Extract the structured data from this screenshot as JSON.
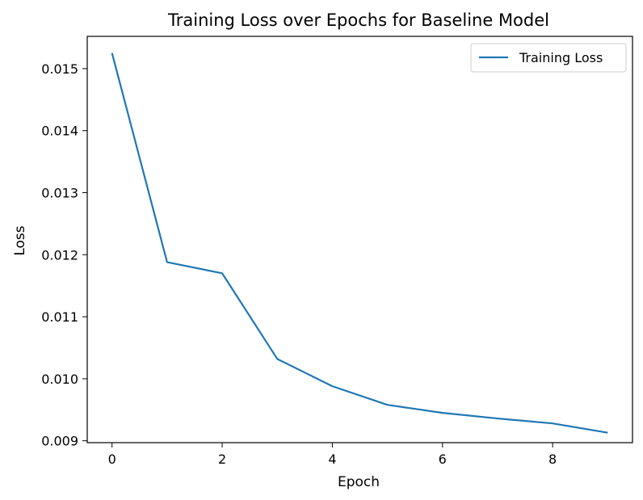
{
  "chart_data": {
    "type": "line",
    "title": "Training Loss over Epochs for Baseline Model",
    "xlabel": "Epoch",
    "ylabel": "Loss",
    "xlim": [
      -0.45,
      9.45
    ],
    "ylim": [
      0.00897,
      0.01552
    ],
    "xticks": [
      0,
      2,
      4,
      6,
      8
    ],
    "xtick_labels": [
      "0",
      "2",
      "4",
      "6",
      "8"
    ],
    "yticks": [
      0.009,
      0.01,
      0.011,
      0.012,
      0.013,
      0.014,
      0.015
    ],
    "ytick_labels": [
      "0.009",
      "0.010",
      "0.011",
      "0.012",
      "0.013",
      "0.014",
      "0.015"
    ],
    "grid": false,
    "legend_position": "top-right",
    "series": [
      {
        "name": "Training Loss",
        "color": "#1f77b4",
        "x": [
          0,
          1,
          2,
          3,
          4,
          5,
          6,
          7,
          8,
          9
        ],
        "y": [
          0.01525,
          0.01188,
          0.0117,
          0.01032,
          0.00988,
          0.00958,
          0.00945,
          0.00936,
          0.00928,
          0.00913
        ]
      }
    ]
  }
}
